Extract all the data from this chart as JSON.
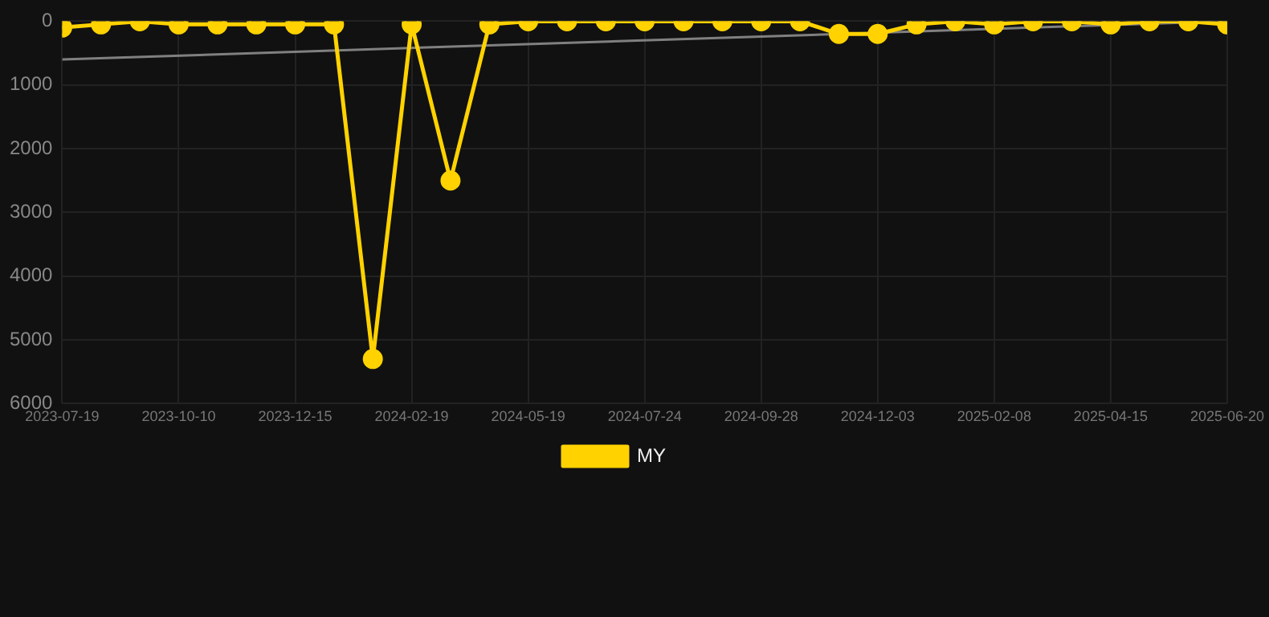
{
  "chart_data": {
    "type": "line",
    "categories": [
      "2023-07-19",
      null,
      null,
      "2023-10-10",
      null,
      null,
      "2023-12-15",
      null,
      null,
      "2024-02-19",
      null,
      null,
      "2024-05-19",
      null,
      null,
      "2024-07-24",
      null,
      null,
      "2024-09-28",
      null,
      null,
      "2024-12-03",
      null,
      null,
      "2025-02-08",
      null,
      null,
      "2025-04-15",
      null,
      null,
      "2025-06-20"
    ],
    "series": [
      {
        "name": "MY",
        "color": "#ffd200",
        "values": [
          100,
          50,
          0,
          50,
          50,
          50,
          50,
          50,
          5300,
          50,
          2500,
          50,
          0,
          0,
          0,
          0,
          0,
          0,
          0,
          0,
          200,
          200,
          50,
          0,
          50,
          0,
          0,
          50,
          0,
          0,
          50
        ]
      },
      {
        "type": "line",
        "color": "#808080",
        "marker": "none",
        "values": [
          600,
          null,
          null,
          null,
          null,
          null,
          null,
          null,
          null,
          null,
          null,
          null,
          null,
          null,
          null,
          null,
          null,
          null,
          null,
          null,
          null,
          null,
          null,
          null,
          null,
          null,
          null,
          null,
          null,
          null,
          0
        ]
      }
    ],
    "ylim": [
      6000,
      0
    ],
    "yticks": [
      0,
      {
        "value": 1000,
        "label": "1000"
      },
      {
        "value": 2000,
        "label": "2000"
      },
      {
        "value": 3000,
        "label": "3000"
      },
      {
        "value": 4000,
        "label": "4000"
      },
      {
        "value": 5000,
        "label": "5000"
      },
      {
        "value": 6000,
        "label": "6000"
      }
    ],
    "grid": true,
    "legend": "bottom",
    "marker": "circle",
    "line_style": "solid"
  }
}
